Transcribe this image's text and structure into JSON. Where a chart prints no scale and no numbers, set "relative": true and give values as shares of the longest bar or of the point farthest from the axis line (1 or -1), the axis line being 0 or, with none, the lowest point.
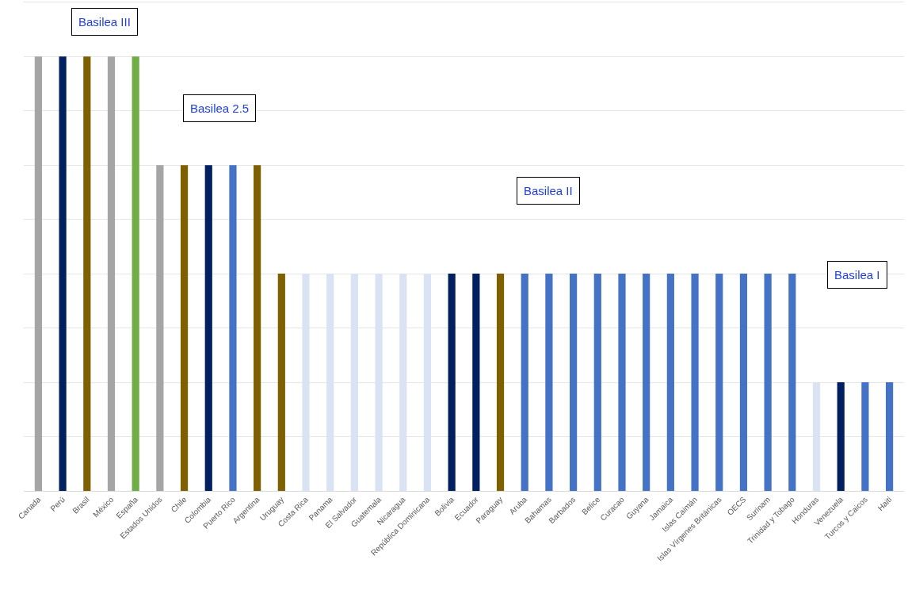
{
  "chart_data": {
    "type": "bar",
    "relative": true,
    "grid": "y",
    "categories": [
      "Canada",
      "Perú",
      "Brasil",
      "México",
      "España",
      "Estados Unidos",
      "Chile",
      "Colombia",
      "Puerto Rico",
      "Argentina",
      "Uruguay",
      "Costa Rica",
      "Panama",
      "El Salvador",
      "Guatemala",
      "Nicaragua",
      "República Dominicana",
      "Bolivia",
      "Ecuador",
      "Paraguay",
      "Aruba",
      "Bahamas",
      "Barbados",
      "Belice",
      "Curacao",
      "Guyana",
      "Jamaica",
      "Islas Caimán",
      "Islas Vírgenes Británicas",
      "OECS",
      "Surinam",
      "Trinidad y Tobago",
      "Honduras",
      "Venezuela",
      "Turcos y Caicos",
      "Haiti"
    ],
    "values": [
      1,
      1,
      1,
      1,
      1,
      0.75,
      0.75,
      0.75,
      0.75,
      0.75,
      0.5,
      0.5,
      0.5,
      0.5,
      0.5,
      0.5,
      0.5,
      0.5,
      0.5,
      0.5,
      0.5,
      0.5,
      0.5,
      0.5,
      0.5,
      0.5,
      0.5,
      0.5,
      0.5,
      0.5,
      0.5,
      0.5,
      0.25,
      0.25,
      0.25,
      0.25
    ],
    "colors": [
      "#a5a5a5",
      "#002060",
      "#7f6000",
      "#a5a5a5",
      "#70ad47",
      "#a5a5a5",
      "#7f6000",
      "#002060",
      "#4472c4",
      "#7f6000",
      "#7f6000",
      "#dae3f3",
      "#dae3f3",
      "#dae3f3",
      "#dae3f3",
      "#dae3f3",
      "#dae3f3",
      "#002060",
      "#002060",
      "#7f6000",
      "#4472c4",
      "#4472c4",
      "#4472c4",
      "#4472c4",
      "#4472c4",
      "#4472c4",
      "#4472c4",
      "#4472c4",
      "#4472c4",
      "#4472c4",
      "#4472c4",
      "#4472c4",
      "#dae3f3",
      "#002060",
      "#4472c4",
      "#4472c4"
    ],
    "annotations": [
      "Basilea III",
      "Basilea 2.5",
      "Basilea II",
      "Basilea I"
    ]
  }
}
